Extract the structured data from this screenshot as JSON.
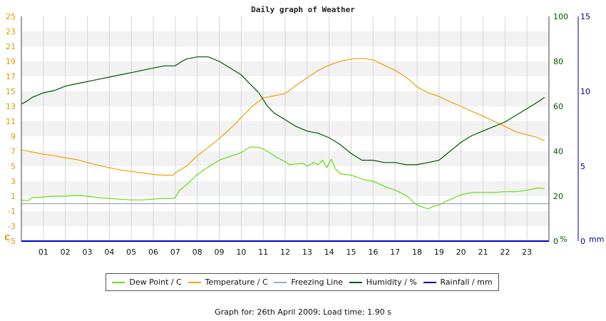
{
  "footer": {
    "prefix": "Graph for:",
    "date": "26th April 2009",
    "load_label": "Load time:",
    "load_time": "1.90 s"
  },
  "chart_data": {
    "type": "line",
    "title": "Daily graph of Weather",
    "x_ticks": [
      "01",
      "02",
      "03",
      "04",
      "05",
      "06",
      "07",
      "08",
      "09",
      "10",
      "11",
      "12",
      "13",
      "14",
      "15",
      "16",
      "17",
      "18",
      "19",
      "20",
      "21",
      "22",
      "23"
    ],
    "xlim": [
      0,
      24
    ],
    "left_axis": {
      "unit": "C",
      "ylim": [
        -5,
        25
      ],
      "ticks": [
        "25",
        "23",
        "21",
        "19",
        "17",
        "15",
        "13",
        "11",
        "9",
        "7",
        "5",
        "3",
        "1",
        "-1",
        "-3",
        "-5"
      ]
    },
    "humidity_axis": {
      "unit": "%",
      "ylim": [
        0,
        100
      ],
      "ticks": [
        "100",
        "80",
        "60",
        "40",
        "20",
        "0"
      ]
    },
    "rainfall_axis": {
      "unit": "mm",
      "ylim": [
        0,
        15
      ],
      "ticks": [
        "15",
        "10",
        "5",
        "0"
      ]
    },
    "series": [
      {
        "name": "Dew Point / C",
        "axis": "left",
        "color": "#66dd11",
        "x": [
          0,
          0.3,
          0.5,
          1,
          1.5,
          2,
          2.5,
          3,
          3.5,
          4,
          4.5,
          5,
          5.5,
          6,
          6.5,
          6.9,
          7,
          7.2,
          7.5,
          8,
          8.5,
          9,
          9.5,
          10,
          10.3,
          10.5,
          10.8,
          11,
          11.3,
          11.6,
          12,
          12.2,
          12.5,
          12.8,
          13,
          13.3,
          13.5,
          13.7,
          13.9,
          14,
          14.1,
          14.3,
          14.5,
          15,
          15.3,
          15.6,
          16,
          16.3,
          16.6,
          17,
          17.3,
          17.6,
          17.8,
          18,
          18.2,
          18.5,
          18.8,
          19,
          19.3,
          19.7,
          20,
          20.5,
          21,
          21.5,
          22,
          22.5,
          23,
          23.5,
          23.8
        ],
        "y": [
          0.5,
          0.4,
          0.8,
          0.9,
          1.0,
          1.0,
          1.1,
          1.0,
          0.8,
          0.7,
          0.6,
          0.5,
          0.5,
          0.6,
          0.7,
          0.7,
          0.8,
          1.8,
          2.5,
          3.9,
          4.9,
          5.8,
          6.3,
          6.8,
          7.4,
          7.6,
          7.5,
          7.3,
          6.8,
          6.2,
          5.6,
          5.2,
          5.3,
          5.4,
          5.0,
          5.5,
          5.2,
          5.8,
          4.8,
          5.5,
          5.9,
          4.6,
          4.0,
          3.8,
          3.5,
          3.2,
          3.0,
          2.6,
          2.2,
          1.8,
          1.4,
          0.9,
          0.3,
          -0.2,
          -0.4,
          -0.7,
          -0.3,
          -0.2,
          0.3,
          0.8,
          1.2,
          1.5,
          1.5,
          1.5,
          1.6,
          1.6,
          1.8,
          2.1,
          2.0
        ]
      },
      {
        "name": "Temperature / C",
        "axis": "left",
        "color": "#f0a000",
        "x": [
          0,
          0.5,
          1,
          1.5,
          2,
          2.5,
          3,
          3.5,
          4,
          4.5,
          5,
          5.5,
          6,
          6.5,
          6.9,
          7,
          7.5,
          8,
          8.5,
          9,
          9.5,
          10,
          10.5,
          11,
          11.5,
          12,
          12.5,
          13,
          13.5,
          14,
          14.5,
          15,
          15.5,
          16,
          16.5,
          17,
          17.5,
          18,
          18.5,
          19,
          19.5,
          20,
          20.5,
          21,
          21.5,
          22,
          22.5,
          23,
          23.5,
          23.8
        ],
        "y": [
          7.2,
          6.9,
          6.6,
          6.4,
          6.1,
          5.9,
          5.5,
          5.1,
          4.8,
          4.5,
          4.3,
          4.1,
          3.9,
          3.8,
          3.8,
          4.1,
          5.0,
          6.4,
          7.5,
          8.7,
          10.0,
          11.5,
          13.0,
          14.1,
          14.4,
          14.7,
          15.8,
          16.8,
          17.8,
          18.5,
          19.0,
          19.3,
          19.4,
          19.2,
          18.5,
          17.8,
          16.9,
          15.6,
          14.8,
          14.3,
          13.6,
          13.0,
          12.3,
          11.7,
          11.0,
          10.3,
          9.6,
          9.2,
          8.8,
          8.4
        ]
      },
      {
        "name": "Freezing Line",
        "axis": "left",
        "color": "#99aabb",
        "x": [
          0,
          24
        ],
        "y": [
          0,
          0
        ]
      },
      {
        "name": "Humidity / %",
        "axis": "humidity",
        "color": "#005500",
        "x": [
          0,
          0.2,
          0.5,
          1,
          1.5,
          2,
          2.5,
          3,
          3.5,
          4,
          4.5,
          5,
          5.5,
          6,
          6.5,
          7,
          7.3,
          7.5,
          8,
          8.5,
          9,
          9.5,
          10,
          10.3,
          10.5,
          10.8,
          11,
          11.2,
          11.5,
          12,
          12.5,
          13,
          13.5,
          14,
          14.5,
          15,
          15.5,
          16,
          16.5,
          17,
          17.5,
          18,
          18.5,
          19,
          19.5,
          20,
          20.5,
          21,
          21.5,
          22,
          22.5,
          23,
          23.5,
          23.8
        ],
        "y": [
          61,
          62,
          64,
          66,
          67,
          69,
          70,
          71,
          72,
          73,
          74,
          75,
          76,
          77,
          78,
          78,
          80,
          81,
          82,
          82,
          80,
          77,
          74,
          71,
          69,
          66,
          63,
          60,
          57,
          54,
          51,
          49,
          48,
          46,
          43,
          39,
          36,
          36,
          35,
          35,
          34,
          34,
          35,
          36,
          40,
          44,
          47,
          49,
          51,
          53,
          56,
          59,
          62,
          64
        ]
      },
      {
        "name": "Rainfall / mm",
        "axis": "rainfall",
        "color": "#0000cc",
        "x": [
          0,
          24
        ],
        "y": [
          0,
          0
        ]
      }
    ],
    "legend_position": "bottom-center",
    "grid": true
  }
}
